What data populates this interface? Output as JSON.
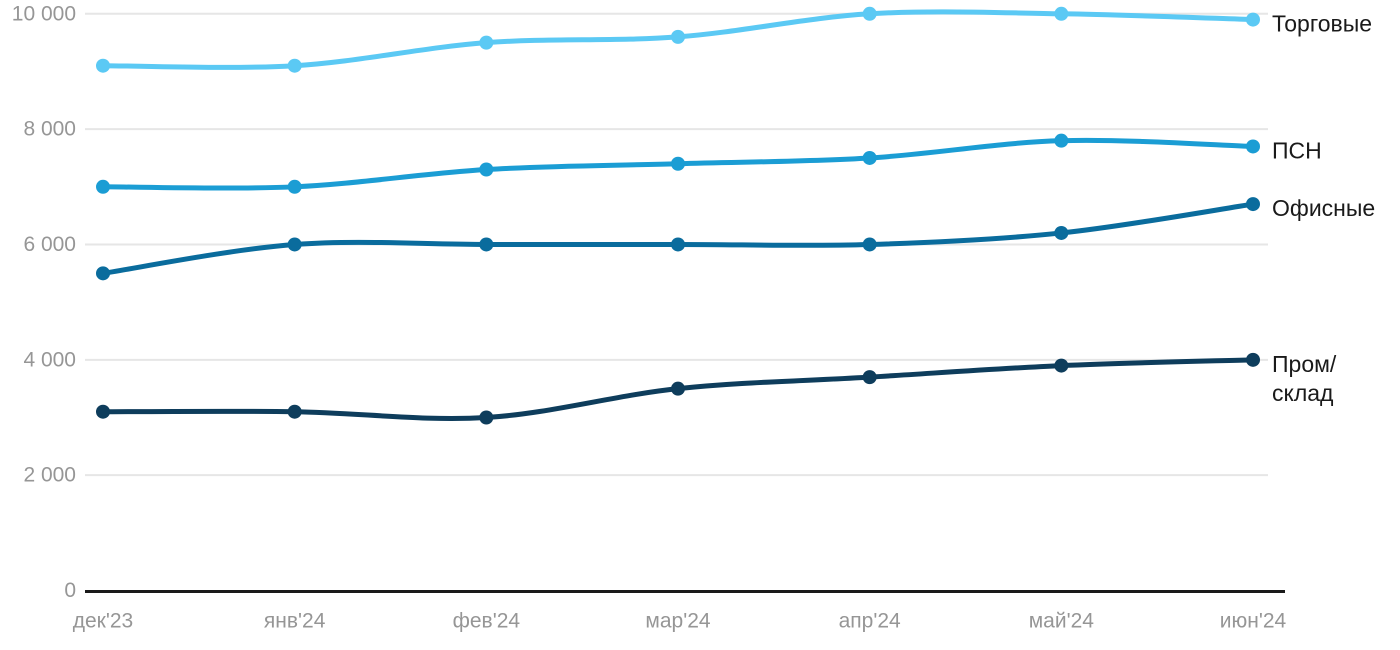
{
  "page": {
    "background": "#FFFFFF"
  },
  "chart_data": {
    "type": "line",
    "title": "",
    "x_categories": [
      "дек'23",
      "янв'24",
      "фев'24",
      "мар'24",
      "апр'24",
      "май'24",
      "июн'24"
    ],
    "series": [
      {
        "name": "Торговые",
        "label_lines": [
          "Торговые"
        ],
        "color": "#5BC9F4",
        "values": [
          9100,
          9100,
          9500,
          9600,
          10000,
          10000,
          9900
        ]
      },
      {
        "name": "ПСН",
        "label_lines": [
          "ПСН"
        ],
        "color": "#1B9DD4",
        "values": [
          7000,
          7000,
          7300,
          7400,
          7500,
          7800,
          7700
        ]
      },
      {
        "name": "Офисные",
        "label_lines": [
          "Офисные"
        ],
        "color": "#0A6C9D",
        "values": [
          5500,
          6000,
          6000,
          6000,
          6000,
          6200,
          6700
        ]
      },
      {
        "name": "Пром/склад",
        "label_lines": [
          "Пром/",
          "склад"
        ],
        "color": "#0E3D5C",
        "values": [
          3100,
          3100,
          3000,
          3500,
          3700,
          3900,
          4000
        ]
      }
    ],
    "y_ticks": [
      0,
      2000,
      4000,
      6000,
      8000,
      10000
    ],
    "y_tick_labels": [
      "0",
      "2 000",
      "4 000",
      "6 000",
      "8 000",
      "10 000"
    ],
    "ylim": [
      0,
      10000
    ],
    "xlabel": "",
    "ylabel": "",
    "grid": "horizontal",
    "legend_position": "inline-right-of-lines",
    "markers": "filled-circles",
    "palette": {
      "grid": "#E6E6E6",
      "axis": "#1A1A1A",
      "tick_text": "#969696",
      "series_label_text": "#1A1A1A",
      "background": "#FFFFFF"
    }
  }
}
